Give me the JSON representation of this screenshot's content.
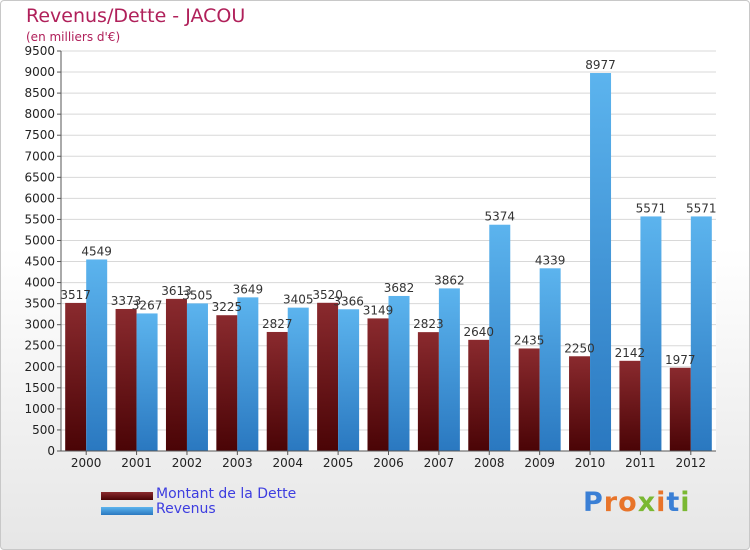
{
  "chart_data": {
    "type": "bar",
    "title": "Revenus/Dette - JACOU",
    "subtitle": "(en milliers d'€)",
    "categories": [
      "2000",
      "2001",
      "2002",
      "2003",
      "2004",
      "2005",
      "2006",
      "2007",
      "2008",
      "2009",
      "2010",
      "2011",
      "2012"
    ],
    "series": [
      {
        "name": "Montant de la Dette",
        "color": "#6a0f12",
        "values": [
          3517,
          3373,
          3613,
          3225,
          2827,
          3520,
          3149,
          2823,
          2640,
          2435,
          2250,
          2142,
          1977
        ],
        "labels": [
          "3517",
          "3373",
          "3613",
          "3225",
          "2827",
          "3520",
          "3149",
          "2823",
          "2640",
          "2435",
          "2250",
          "2142",
          "1977"
        ]
      },
      {
        "name": "Revenus",
        "color": "#3a97da",
        "values": [
          4549,
          3267,
          3505,
          3649,
          3405,
          3366,
          3682,
          3862,
          5374,
          4339,
          8977,
          5571,
          5571
        ],
        "labels": [
          "4549",
          "3267",
          "3505",
          "3649",
          "3405",
          "3366",
          "3682",
          "3862",
          "5374",
          "4339",
          "8977",
          "5571",
          "5571"
        ]
      }
    ],
    "ylim": [
      0,
      9500
    ],
    "yticks": [
      0,
      500,
      1000,
      1500,
      2000,
      2500,
      3000,
      3500,
      4000,
      4500,
      5000,
      5500,
      6000,
      6500,
      7000,
      7500,
      8000,
      8500,
      9000,
      9500
    ],
    "grid": true,
    "legend": "bottom-left"
  },
  "logo": {
    "letters": [
      {
        "ch": "P",
        "color": "#3a7fd5"
      },
      {
        "ch": "r",
        "color": "#e8742a"
      },
      {
        "ch": "o",
        "color": "#e8742a"
      },
      {
        "ch": "x",
        "color": "#7ab832"
      },
      {
        "ch": "i",
        "color": "#e8742a"
      },
      {
        "ch": "t",
        "color": "#3a7fd5"
      },
      {
        "ch": "i",
        "color": "#7ab832"
      }
    ]
  }
}
